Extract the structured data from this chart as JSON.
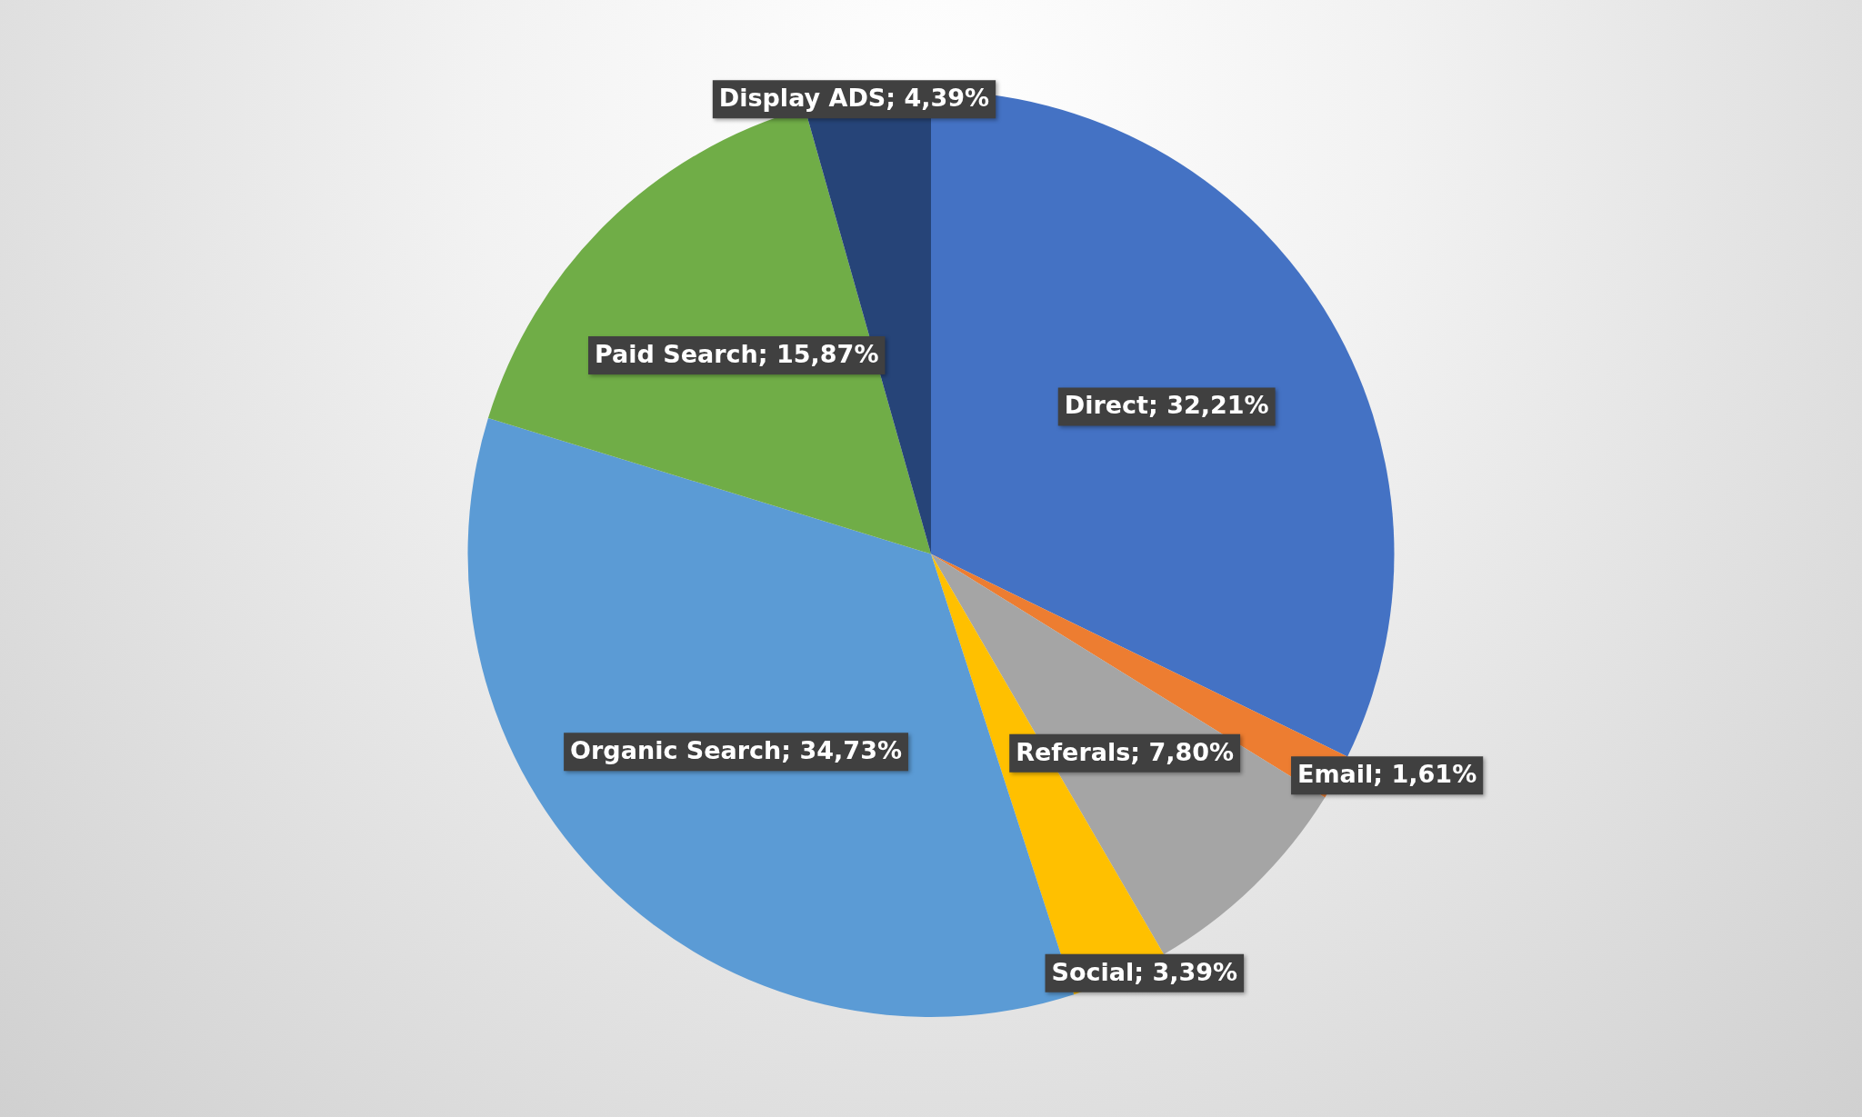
{
  "chart_data": {
    "type": "pie",
    "categories": [
      "Direct",
      "Email",
      "Referals",
      "Social",
      "Organic Search",
      "Paid Search",
      "Display ADS"
    ],
    "values": [
      32.21,
      1.61,
      7.8,
      3.39,
      34.73,
      15.87,
      4.39
    ],
    "colors": [
      "#4472c4",
      "#ed7d31",
      "#a5a5a5",
      "#ffc000",
      "#5b9bd5",
      "#70ad47",
      "#264478"
    ],
    "value_labels": [
      "32,21%",
      "1,61%",
      "7,80%",
      "3,39%",
      "34,73%",
      "15,87%",
      "4,39%"
    ]
  }
}
